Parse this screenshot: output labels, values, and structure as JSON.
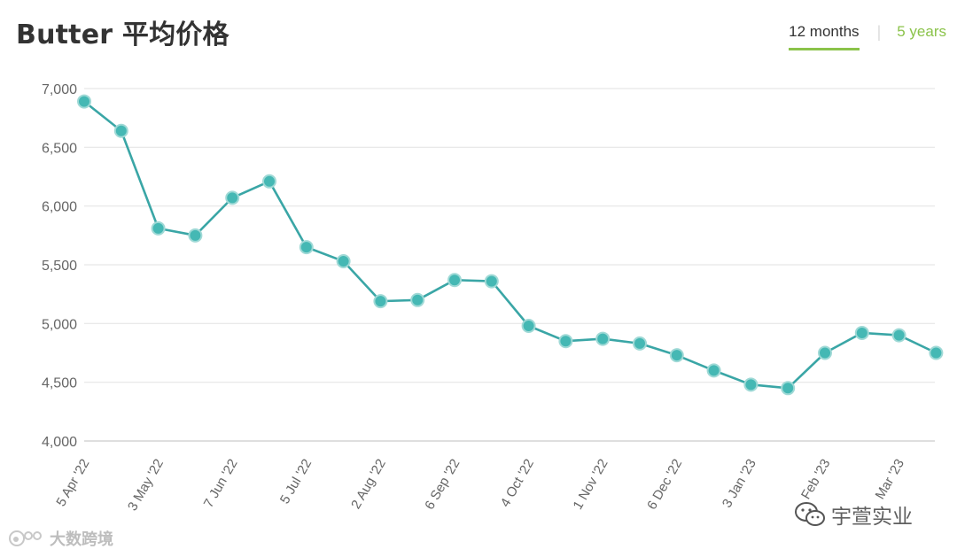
{
  "header": {
    "title": "Butter 平均价格",
    "tabs": [
      {
        "label": "12 months",
        "active": true
      },
      {
        "label": "5 years",
        "active": false
      }
    ]
  },
  "chart_data": {
    "type": "line",
    "title": "Butter 平均价格",
    "xlabel": "",
    "ylabel": "",
    "ylim": [
      4000,
      7000
    ],
    "yticks": [
      4000,
      4500,
      5000,
      5500,
      6000,
      6500,
      7000
    ],
    "ytick_labels": [
      "4,000",
      "4,500",
      "5,000",
      "5,500",
      "6,000",
      "6,500",
      "7,000"
    ],
    "xtick_labels": [
      "5 Apr '22",
      "3 May '22",
      "7 Jun '22",
      "5 Jul '22",
      "2 Aug '22",
      "6 Sep '22",
      "4 Oct '22",
      "1 Nov '22",
      "6 Dec '22",
      "3 Jan '23",
      "Feb '23",
      "Mar '23"
    ],
    "xtick_points": [
      0,
      2,
      4,
      6,
      8,
      10,
      12,
      14,
      16,
      18,
      20,
      22
    ],
    "grid": true,
    "series": [
      {
        "values": [
          6890,
          6640,
          5810,
          5750,
          6070,
          6210,
          5650,
          5530,
          5190,
          5200,
          5370,
          5360,
          4980,
          4850,
          4870,
          4830,
          4730,
          4600,
          4480,
          4450,
          4750,
          4920,
          4900,
          4750
        ],
        "color": "#3aa6a6",
        "marker_color": "#45b8b4"
      }
    ]
  },
  "watermarks": {
    "left_text": "大数跨境",
    "right_text": "宇萱实业"
  }
}
